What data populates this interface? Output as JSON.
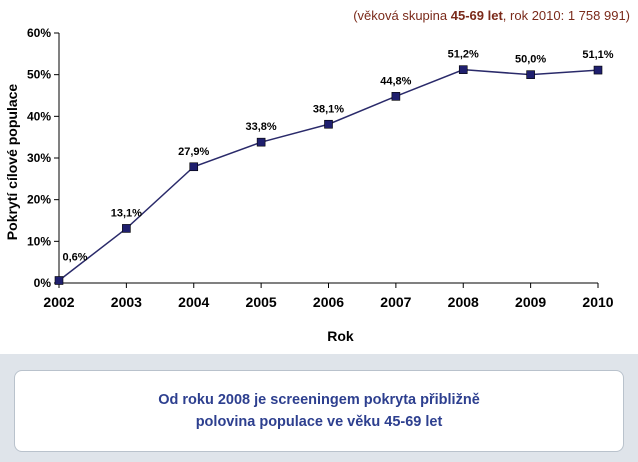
{
  "subtitle": {
    "prefix": "(věková skupina ",
    "bold": "45-69 let",
    "suffix": ", rok 2010: 1 758 991)"
  },
  "note": {
    "line1": "Od roku 2008 je screeningem pokryta přibližně",
    "line2": "polovina populace ve věku 45-69 let"
  },
  "colors": {
    "marker": "#1f1f6e",
    "line": "#2a2a6a",
    "note_text": "#2d3f8f",
    "subtitle_text": "#7a2a1a"
  },
  "chart_data": {
    "type": "line",
    "xlabel": "Rok",
    "ylabel": "Pokrytí cílové populace",
    "categories": [
      "2002",
      "2003",
      "2004",
      "2005",
      "2006",
      "2007",
      "2008",
      "2009",
      "2010"
    ],
    "series": [
      {
        "values": [
          0.6,
          13.1,
          27.9,
          33.8,
          38.1,
          44.8,
          51.2,
          50.0,
          51.1
        ]
      }
    ],
    "data_labels": [
      "0,6%",
      "13,1%",
      "27,9%",
      "33,8%",
      "38,1%",
      "44,8%",
      "51,2%",
      "50,0%",
      "51,1%"
    ],
    "yticks": [
      "0%",
      "10%",
      "20%",
      "30%",
      "40%",
      "50%",
      "60%"
    ],
    "ylim": [
      0,
      60
    ],
    "grid": false,
    "marker": "square"
  }
}
